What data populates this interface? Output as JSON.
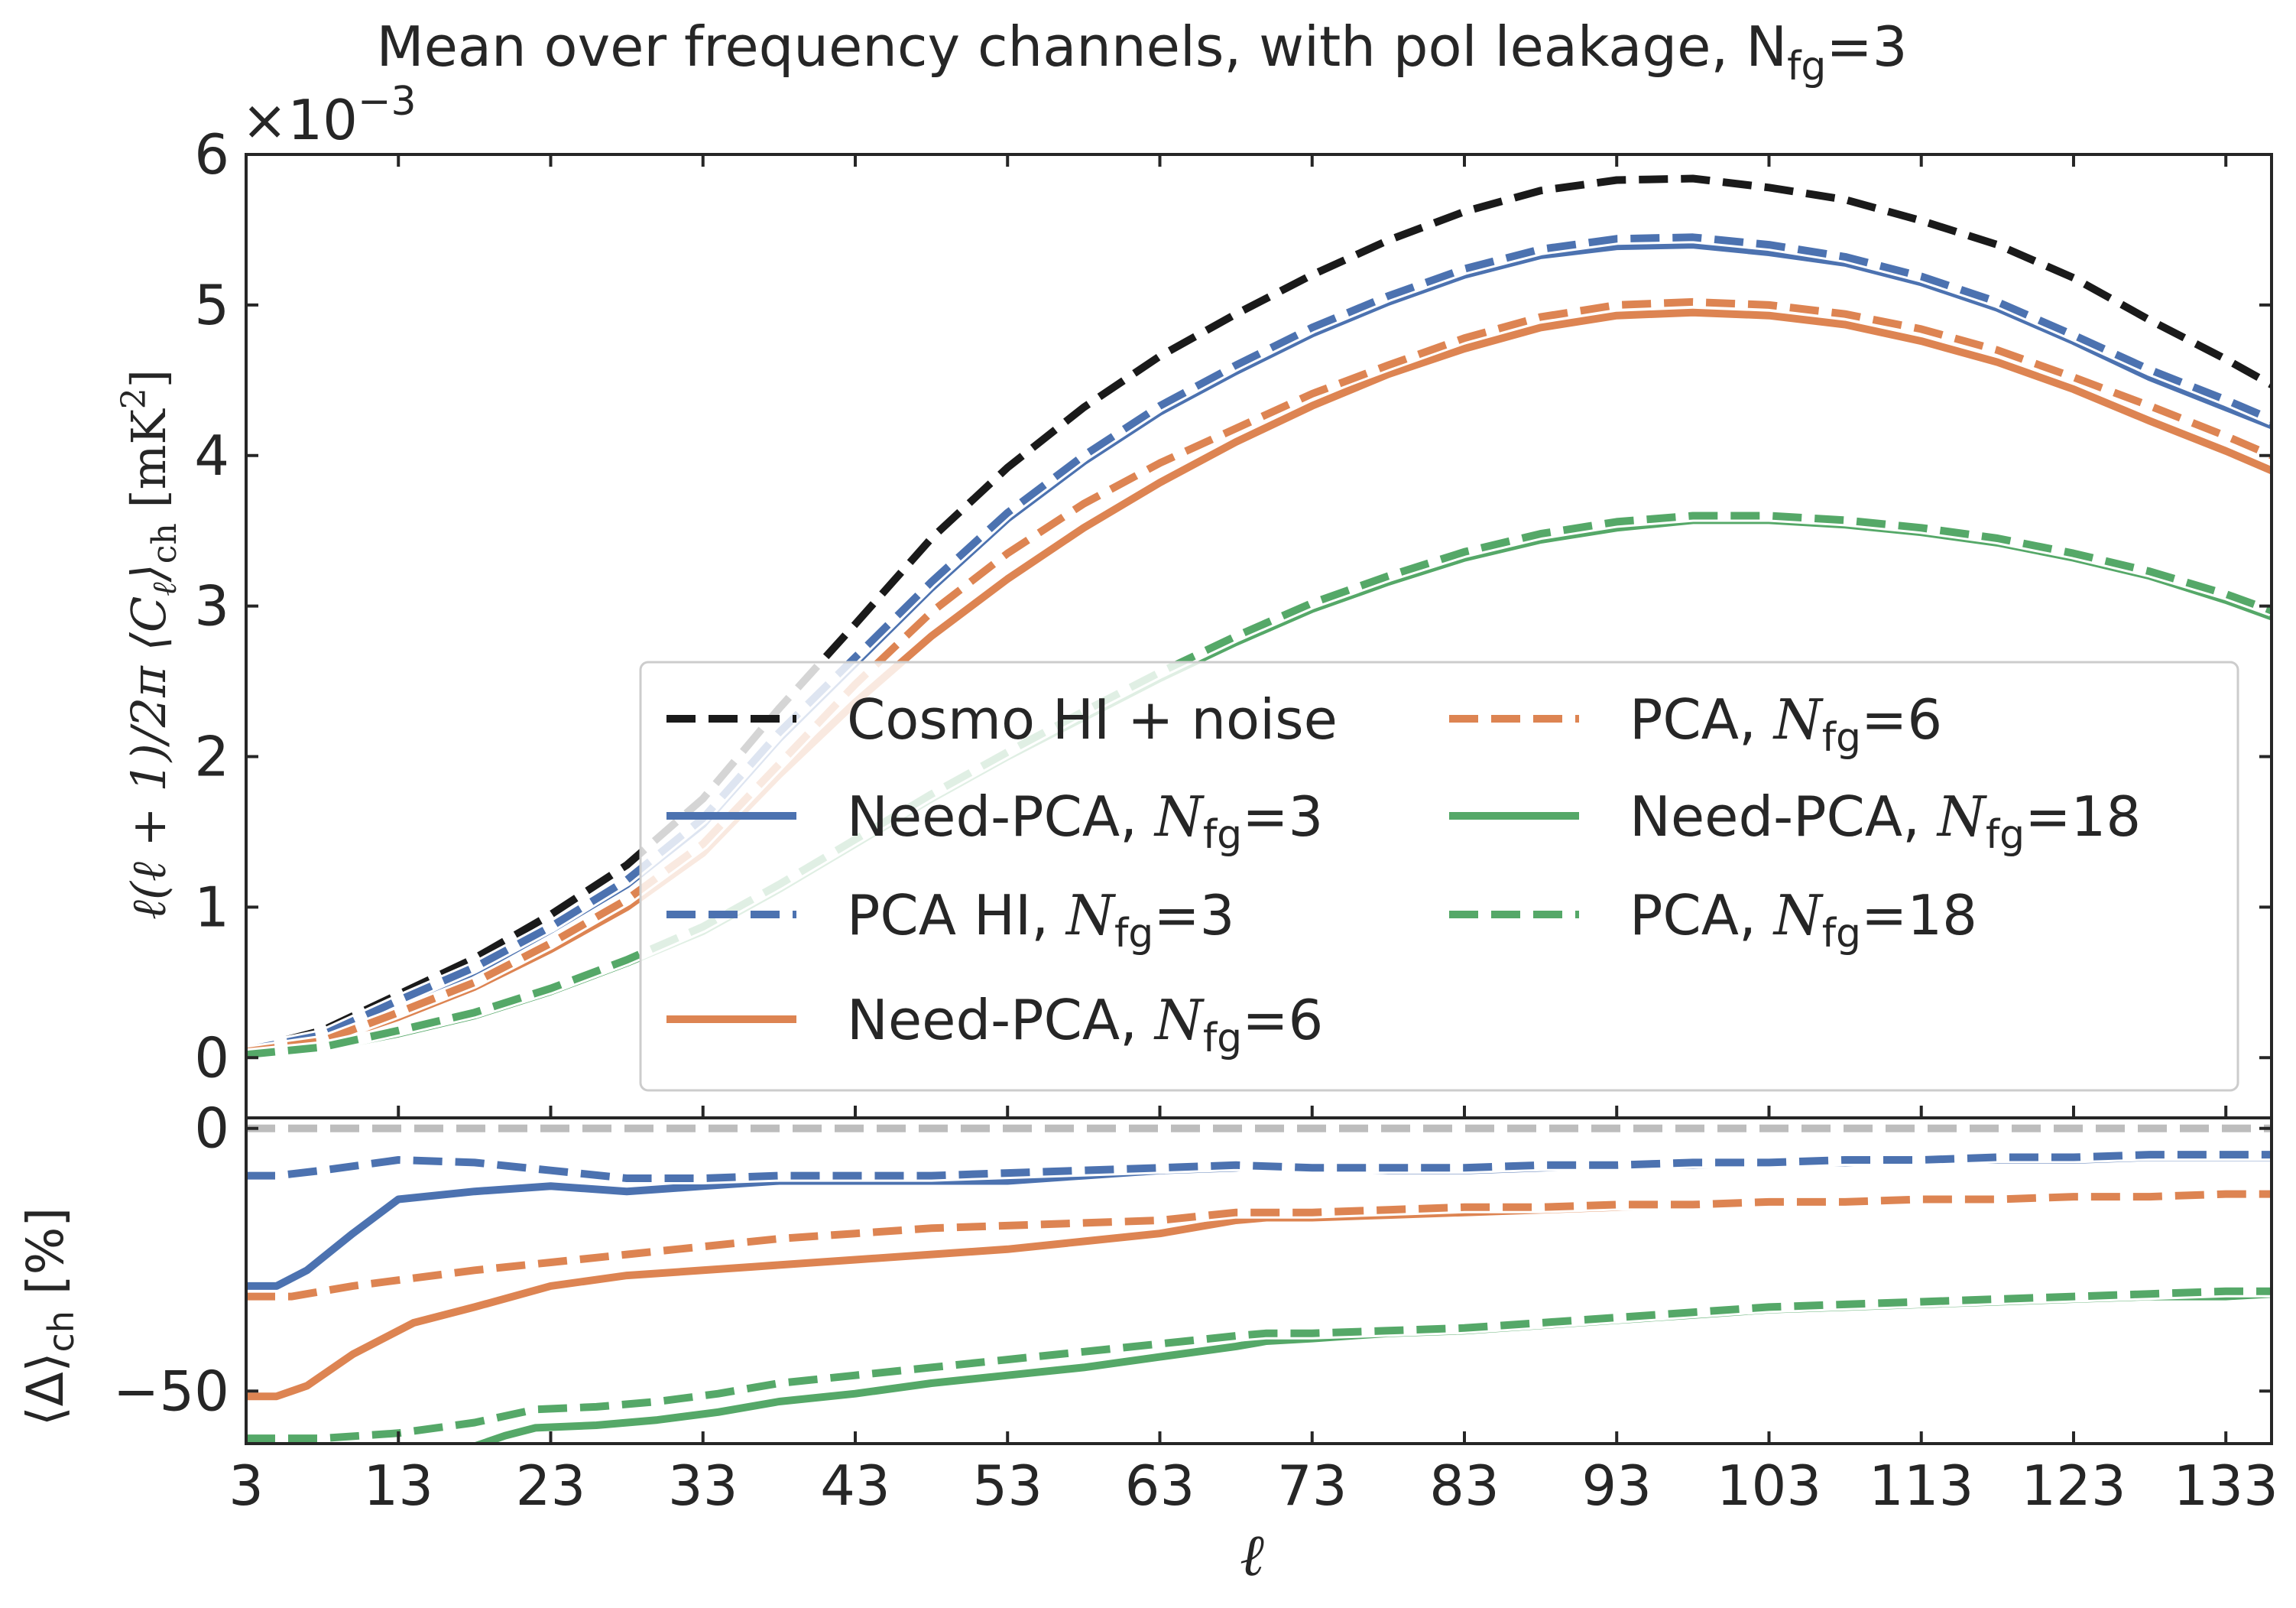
{
  "chart_data": [
    {
      "type": "line",
      "title": "Mean over frequency channels, with pol leakage, N_fg=3",
      "title_parts": {
        "main": "Mean over frequency channels, with pol leakage, N",
        "sub": "fg",
        "tail": "=3"
      },
      "ylabel": "ℓ(ℓ + 1)/2π ⟨C_ℓ⟩_ch [mK²]",
      "y_multiplier": "×10⁻³",
      "ylim": [
        -0.4,
        6.0
      ],
      "yticks": [
        0,
        1,
        2,
        3,
        4,
        5,
        6
      ],
      "ytick_labels": [
        "0",
        "1",
        "2",
        "3",
        "4",
        "5",
        "6"
      ],
      "xlim": [
        3,
        136
      ],
      "grid": false,
      "legend_position": "lower-right",
      "series": [
        {
          "name": "Cosmo HI + noise",
          "label_parts": {
            "main": "Cosmo HI + noise"
          },
          "color": "#1a1a1a",
          "style": "dashed",
          "x": [
            3,
            8,
            13,
            18,
            23,
            28,
            33,
            38,
            43,
            48,
            53,
            58,
            63,
            68,
            73,
            78,
            83,
            88,
            93,
            98,
            103,
            108,
            113,
            118,
            123,
            128,
            133,
            136
          ],
          "y": [
            0.05,
            0.18,
            0.42,
            0.66,
            0.95,
            1.28,
            1.72,
            2.32,
            2.88,
            3.45,
            3.92,
            4.32,
            4.66,
            4.94,
            5.2,
            5.43,
            5.62,
            5.76,
            5.83,
            5.84,
            5.78,
            5.7,
            5.56,
            5.4,
            5.18,
            4.9,
            4.64,
            4.47
          ]
        },
        {
          "name": "Need-PCA, N_fg=3",
          "label_parts": {
            "main": "Need-PCA, ",
            "var": "N",
            "sub": "fg",
            "tail": "=3"
          },
          "color": "#4c72b0",
          "style": "solid",
          "x": [
            3,
            8,
            13,
            18,
            23,
            28,
            33,
            38,
            43,
            48,
            53,
            58,
            63,
            68,
            73,
            78,
            83,
            88,
            93,
            98,
            103,
            108,
            113,
            118,
            123,
            128,
            133,
            136
          ],
          "y": [
            0.05,
            0.14,
            0.35,
            0.57,
            0.85,
            1.15,
            1.55,
            2.12,
            2.62,
            3.12,
            3.58,
            3.96,
            4.29,
            4.56,
            4.81,
            5.02,
            5.2,
            5.33,
            5.39,
            5.4,
            5.35,
            5.28,
            5.15,
            4.98,
            4.76,
            4.52,
            4.32,
            4.2
          ]
        },
        {
          "name": "PCA HI, N_fg=3",
          "label_parts": {
            "main": "PCA HI, ",
            "var": "N",
            "sub": "fg",
            "tail": "=3"
          },
          "color": "#4c72b0",
          "style": "dashed",
          "x": [
            3,
            8,
            13,
            18,
            23,
            28,
            33,
            38,
            43,
            48,
            53,
            58,
            63,
            68,
            73,
            78,
            83,
            88,
            93,
            98,
            103,
            108,
            113,
            118,
            123,
            128,
            133,
            136
          ],
          "y": [
            0.05,
            0.15,
            0.38,
            0.6,
            0.87,
            1.18,
            1.59,
            2.16,
            2.66,
            3.16,
            3.62,
            4.0,
            4.33,
            4.6,
            4.85,
            5.06,
            5.24,
            5.37,
            5.44,
            5.45,
            5.4,
            5.32,
            5.19,
            5.02,
            4.8,
            4.57,
            4.37,
            4.24
          ]
        },
        {
          "name": "Need-PCA, N_fg=6",
          "label_parts": {
            "main": "Need-PCA, ",
            "var": "N",
            "sub": "fg",
            "tail": "=6"
          },
          "color": "#dd8452",
          "style": "solid",
          "x": [
            3,
            8,
            13,
            18,
            23,
            28,
            33,
            38,
            43,
            48,
            53,
            58,
            63,
            68,
            73,
            78,
            83,
            88,
            93,
            98,
            103,
            108,
            113,
            118,
            123,
            128,
            133,
            136
          ],
          "y": [
            0.03,
            0.1,
            0.27,
            0.47,
            0.72,
            1.0,
            1.36,
            1.88,
            2.36,
            2.8,
            3.18,
            3.52,
            3.82,
            4.09,
            4.33,
            4.54,
            4.71,
            4.85,
            4.93,
            4.95,
            4.93,
            4.87,
            4.76,
            4.62,
            4.44,
            4.23,
            4.03,
            3.9
          ]
        },
        {
          "name": "PCA, N_fg=6",
          "label_parts": {
            "main": "PCA, ",
            "var": "N",
            "sub": "fg",
            "tail": "=6"
          },
          "color": "#dd8452",
          "style": "dashed",
          "x": [
            3,
            8,
            13,
            18,
            23,
            28,
            33,
            38,
            43,
            48,
            53,
            58,
            63,
            68,
            73,
            78,
            83,
            88,
            93,
            98,
            103,
            108,
            113,
            118,
            123,
            128,
            133,
            136
          ],
          "y": [
            0.04,
            0.11,
            0.3,
            0.5,
            0.76,
            1.05,
            1.42,
            1.95,
            2.48,
            2.96,
            3.35,
            3.68,
            3.95,
            4.18,
            4.41,
            4.6,
            4.78,
            4.92,
            5.0,
            5.02,
            5.0,
            4.94,
            4.84,
            4.7,
            4.52,
            4.33,
            4.13,
            4.0
          ]
        },
        {
          "name": "Need-PCA, N_fg=18",
          "label_parts": {
            "main": "Need-PCA, ",
            "var": "N",
            "sub": "fg",
            "tail": "=18"
          },
          "color": "#55a868",
          "style": "solid",
          "x": [
            3,
            8,
            13,
            18,
            23,
            28,
            33,
            38,
            43,
            48,
            53,
            58,
            63,
            68,
            73,
            78,
            83,
            88,
            93,
            98,
            103,
            108,
            113,
            118,
            123,
            128,
            133,
            136
          ],
          "y": [
            0.02,
            0.06,
            0.16,
            0.28,
            0.44,
            0.63,
            0.84,
            1.12,
            1.42,
            1.72,
            2.0,
            2.26,
            2.52,
            2.76,
            2.98,
            3.16,
            3.32,
            3.44,
            3.52,
            3.57,
            3.57,
            3.54,
            3.49,
            3.42,
            3.32,
            3.2,
            3.04,
            2.93
          ]
        },
        {
          "name": "PCA, N_fg=18",
          "label_parts": {
            "main": "PCA, ",
            "var": "N",
            "sub": "fg",
            "tail": "=18"
          },
          "color": "#55a868",
          "style": "dashed",
          "x": [
            3,
            8,
            13,
            18,
            23,
            28,
            33,
            38,
            43,
            48,
            53,
            58,
            63,
            68,
            73,
            78,
            83,
            88,
            93,
            98,
            103,
            108,
            113,
            118,
            123,
            128,
            133,
            136
          ],
          "y": [
            0.02,
            0.07,
            0.18,
            0.3,
            0.46,
            0.65,
            0.87,
            1.15,
            1.45,
            1.75,
            2.03,
            2.3,
            2.56,
            2.8,
            3.02,
            3.2,
            3.36,
            3.48,
            3.56,
            3.6,
            3.6,
            3.57,
            3.52,
            3.45,
            3.35,
            3.23,
            3.08,
            2.97
          ]
        }
      ]
    },
    {
      "type": "line",
      "xlabel": "ℓ",
      "ylabel": "⟨Δ⟩_ch [%]",
      "xlim": [
        3,
        136
      ],
      "xticks": [
        3,
        13,
        23,
        33,
        43,
        53,
        63,
        73,
        83,
        93,
        103,
        113,
        123,
        133
      ],
      "ylim": [
        -60,
        2
      ],
      "yticks": [
        0,
        -50
      ],
      "ytick_labels": [
        "0",
        "−50"
      ],
      "grid": false,
      "reference_line": {
        "y": 0,
        "color": "#bdbdbd",
        "style": "dashed"
      },
      "series": [
        {
          "name": "Need-PCA, N_fg=3",
          "color": "#4c72b0",
          "style": "solid",
          "x": [
            3,
            5,
            7,
            10,
            13,
            18,
            23,
            28,
            33,
            38,
            43,
            48,
            53,
            58,
            63,
            68,
            70,
            73,
            78,
            83,
            88,
            93,
            98,
            103,
            108,
            113,
            118,
            123,
            128,
            133,
            136
          ],
          "y": [
            -30,
            -30,
            -27,
            -20,
            -13.5,
            -12,
            -11,
            -12,
            -11,
            -10,
            -10,
            -10,
            -10,
            -9,
            -8,
            -7.5,
            -7,
            -7.5,
            -8,
            -8,
            -7.5,
            -7,
            -7,
            -6.5,
            -6.5,
            -6,
            -6,
            -6,
            -5.5,
            -5.5,
            -5.5
          ]
        },
        {
          "name": "PCA HI, N_fg=3",
          "color": "#4c72b0",
          "style": "dashed",
          "x": [
            3,
            5,
            8,
            13,
            18,
            23,
            28,
            33,
            38,
            43,
            48,
            53,
            58,
            63,
            68,
            73,
            78,
            83,
            88,
            93,
            98,
            103,
            108,
            113,
            118,
            123,
            128,
            133,
            136
          ],
          "y": [
            -9,
            -9,
            -8,
            -6,
            -6.5,
            -8,
            -9.5,
            -9.5,
            -9,
            -9,
            -9,
            -8.5,
            -8,
            -7.5,
            -7,
            -7.5,
            -7.5,
            -7.5,
            -7,
            -7,
            -6.5,
            -6.5,
            -6,
            -6,
            -5.5,
            -5.5,
            -5,
            -5,
            -5
          ]
        },
        {
          "name": "Need-PCA, N_fg=6",
          "color": "#dd8452",
          "style": "solid",
          "x": [
            3,
            5,
            7,
            10,
            14,
            18,
            23,
            28,
            33,
            38,
            43,
            48,
            53,
            58,
            63,
            68,
            70,
            73,
            78,
            83,
            88,
            93,
            98,
            103,
            108,
            113,
            118,
            123,
            128,
            133,
            136
          ],
          "y": [
            -51,
            -51,
            -49,
            -43,
            -37,
            -34,
            -30,
            -28,
            -27,
            -26,
            -25,
            -24,
            -23,
            -21.5,
            -20,
            -17.5,
            -17,
            -17,
            -16.5,
            -16,
            -15.5,
            -15,
            -14.5,
            -14,
            -14,
            -13.5,
            -13.5,
            -13,
            -13,
            -12.5,
            -12.5
          ]
        },
        {
          "name": "PCA, N_fg=6",
          "color": "#dd8452",
          "style": "dashed",
          "x": [
            3,
            6,
            10,
            14,
            18,
            23,
            28,
            33,
            38,
            43,
            48,
            53,
            58,
            63,
            68,
            73,
            78,
            83,
            88,
            93,
            98,
            103,
            108,
            113,
            118,
            123,
            128,
            133,
            136
          ],
          "y": [
            -32,
            -32,
            -30,
            -28.5,
            -27,
            -25.5,
            -24,
            -22.5,
            -21,
            -20,
            -19,
            -18.5,
            -18,
            -17.5,
            -16,
            -16,
            -15.5,
            -15,
            -15,
            -14.5,
            -14.5,
            -14,
            -14,
            -13.5,
            -13.5,
            -13,
            -13,
            -12.5,
            -12.5
          ]
        },
        {
          "name": "Need-PCA, N_fg=18",
          "color": "#55a868",
          "style": "solid",
          "x": [
            17.5,
            20,
            22,
            26,
            30,
            34,
            38,
            43,
            48,
            53,
            58,
            63,
            68,
            70,
            73,
            78,
            83,
            88,
            93,
            98,
            103,
            108,
            113,
            118,
            123,
            128,
            133,
            136
          ],
          "y": [
            -61,
            -58.5,
            -57,
            -56.5,
            -55.5,
            -54,
            -52,
            -50.5,
            -48.5,
            -47,
            -45.5,
            -43.5,
            -41.5,
            -40.5,
            -40,
            -39,
            -38.5,
            -37.5,
            -36.5,
            -35.5,
            -34.5,
            -34,
            -33.5,
            -33,
            -32.5,
            -32,
            -32,
            -31.5
          ]
        },
        {
          "name": "PCA, N_fg=18",
          "color": "#55a868",
          "style": "dashed",
          "x": [
            3,
            8,
            13,
            18,
            22,
            26,
            30,
            34,
            38,
            43,
            48,
            53,
            58,
            63,
            68,
            70,
            73,
            78,
            83,
            88,
            93,
            98,
            103,
            108,
            113,
            118,
            123,
            128,
            133,
            136
          ],
          "y": [
            -59,
            -59,
            -58,
            -56,
            -53.5,
            -53,
            -52,
            -50.5,
            -48.5,
            -47,
            -45.5,
            -44,
            -42.5,
            -41,
            -39.5,
            -39,
            -39,
            -38.5,
            -38,
            -37,
            -36,
            -35,
            -34,
            -33.5,
            -33,
            -32.5,
            -32,
            -31.5,
            -31,
            -31
          ]
        }
      ]
    }
  ]
}
